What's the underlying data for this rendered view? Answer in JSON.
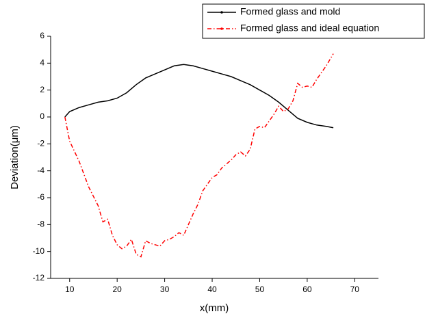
{
  "chart_data": {
    "type": "line",
    "x_label": "x(mm)",
    "y_label": "Deviation(μm)",
    "xlim": [
      6,
      75
    ],
    "ylim": [
      -12,
      6
    ],
    "xticks": [
      10,
      20,
      30,
      40,
      50,
      60,
      70
    ],
    "yticks": [
      -12,
      -10,
      -8,
      -6,
      -4,
      -2,
      0,
      2,
      4,
      6
    ],
    "legend": "top-right",
    "series": [
      {
        "name": "Formed glass and mold",
        "color": "#000000",
        "style": "solid",
        "x": [
          9,
          10,
          12,
          14,
          16,
          18,
          20,
          22,
          24,
          26,
          28,
          30,
          32,
          34,
          36,
          38,
          40,
          42,
          44,
          46,
          48,
          50,
          52,
          54,
          56,
          58,
          60,
          62,
          64,
          65.5
        ],
        "values": [
          0.0,
          0.4,
          0.7,
          0.9,
          1.1,
          1.2,
          1.4,
          1.8,
          2.4,
          2.9,
          3.2,
          3.5,
          3.8,
          3.9,
          3.8,
          3.6,
          3.4,
          3.2,
          3.0,
          2.7,
          2.4,
          2.0,
          1.6,
          1.1,
          0.5,
          -0.1,
          -0.4,
          -0.6,
          -0.7,
          -0.8
        ]
      },
      {
        "name": "Formed glass and ideal equation",
        "color": "#ff0000",
        "style": "dash-dot",
        "x": [
          9,
          10,
          12,
          14,
          16,
          17,
          18,
          19,
          20,
          21,
          22,
          23,
          24,
          25,
          26,
          27,
          28,
          29,
          30,
          31,
          32,
          33,
          34,
          35,
          36,
          37,
          38,
          39,
          40,
          41,
          42,
          43,
          44,
          45,
          46,
          47,
          48,
          49,
          50,
          51,
          52,
          53,
          54,
          55,
          56,
          57,
          58,
          59,
          60,
          61,
          62,
          63,
          64,
          65.5
        ],
        "values": [
          0.0,
          -1.8,
          -3.3,
          -5.2,
          -6.6,
          -7.8,
          -7.6,
          -8.8,
          -9.5,
          -9.8,
          -9.6,
          -9.1,
          -10.2,
          -10.4,
          -9.2,
          -9.4,
          -9.5,
          -9.6,
          -9.2,
          -9.1,
          -8.9,
          -8.6,
          -8.8,
          -8.0,
          -7.2,
          -6.5,
          -5.5,
          -5.0,
          -4.5,
          -4.3,
          -3.8,
          -3.5,
          -3.2,
          -2.8,
          -2.6,
          -2.9,
          -2.4,
          -0.9,
          -0.7,
          -0.8,
          -0.3,
          0.2,
          0.8,
          0.4,
          0.6,
          1.2,
          2.5,
          2.2,
          2.3,
          2.2,
          2.8,
          3.3,
          3.8,
          4.7
        ]
      }
    ]
  }
}
